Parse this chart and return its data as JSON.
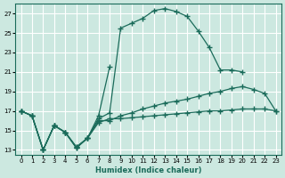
{
  "xlabel": "Humidex (Indice chaleur)",
  "bg_color": "#cce8e0",
  "line_color": "#1a6b5a",
  "grid_color": "#ffffff",
  "xlim": [
    -0.5,
    23.5
  ],
  "ylim": [
    12.5,
    28.0
  ],
  "yticks": [
    13,
    15,
    17,
    19,
    21,
    23,
    25,
    27
  ],
  "xticks": [
    0,
    1,
    2,
    3,
    4,
    5,
    6,
    7,
    8,
    9,
    10,
    11,
    12,
    13,
    14,
    15,
    16,
    17,
    18,
    19,
    20,
    21,
    22,
    23
  ],
  "series1_x": [
    0,
    1,
    2,
    3,
    4,
    5,
    6,
    7,
    8
  ],
  "series1_y": [
    17.0,
    16.5,
    13.0,
    15.5,
    14.8,
    13.2,
    14.2,
    16.5,
    21.5
  ],
  "series2_x": [
    0,
    1,
    2,
    3,
    4,
    5,
    6,
    7,
    8,
    9,
    10,
    11,
    12,
    13,
    14,
    15,
    16,
    17,
    18,
    19,
    20
  ],
  "series2_y": [
    17.0,
    16.5,
    13.0,
    15.5,
    14.8,
    13.2,
    14.2,
    16.2,
    16.8,
    25.5,
    26.0,
    26.5,
    27.3,
    27.5,
    27.2,
    26.7,
    25.2,
    23.5,
    21.2,
    21.2,
    21.0
  ],
  "series3_x": [
    0,
    1,
    2,
    3,
    4,
    5,
    6,
    7,
    8,
    9,
    10,
    11,
    12,
    13,
    14,
    15,
    16,
    17,
    18,
    19,
    20,
    21,
    22,
    23
  ],
  "series3_y": [
    17.0,
    16.5,
    13.0,
    15.5,
    14.8,
    13.3,
    14.2,
    15.8,
    16.2,
    16.2,
    16.3,
    16.4,
    16.5,
    16.6,
    16.7,
    16.8,
    16.9,
    17.0,
    17.0,
    17.1,
    17.2,
    17.2,
    17.2,
    17.0
  ],
  "series4_x": [
    0,
    1,
    2,
    3,
    4,
    5,
    6,
    7,
    8,
    9,
    10,
    11,
    12,
    13,
    14,
    15,
    16,
    17,
    18,
    19,
    20,
    21,
    22,
    23
  ],
  "series4_y": [
    17.0,
    16.5,
    13.0,
    15.5,
    14.8,
    13.3,
    14.2,
    16.0,
    16.0,
    16.5,
    16.8,
    17.2,
    17.5,
    17.8,
    18.0,
    18.2,
    18.5,
    18.8,
    19.0,
    19.3,
    19.5,
    19.2,
    18.8,
    17.0
  ]
}
